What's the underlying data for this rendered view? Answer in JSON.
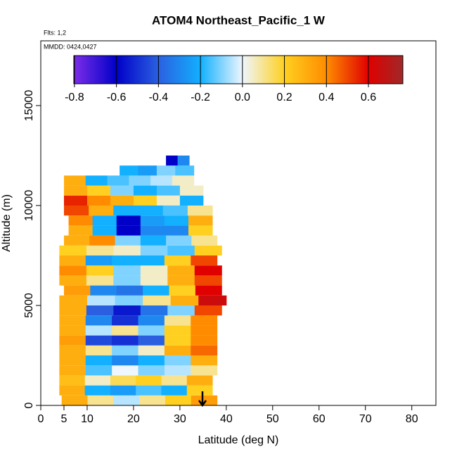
{
  "chart_data": {
    "type": "curtain",
    "title": "ATOM4 Northeast_Pacific_1 W",
    "notes": [
      "Flts: 1,2",
      "MMDD: 0424,0427"
    ],
    "xlabel": "Latitude (deg N)",
    "ylabel": "Altitude (m)",
    "xlim": [
      0,
      85.2
    ],
    "xticks": [
      0,
      5,
      10,
      20,
      30,
      40,
      50,
      60,
      70,
      80
    ],
    "ylim": [
      0,
      18240
    ],
    "yticks": [
      0,
      5000,
      10000,
      15000
    ],
    "clim": [
      -0.803,
      0.764
    ],
    "cticks": [
      -0.8,
      -0.6,
      -0.4,
      -0.2,
      {
        "value": 0,
        "label": "0.0"
      },
      0.2,
      0.4,
      0.6
    ],
    "colorscale": [
      [
        -0.8,
        "#7b2de8"
      ],
      [
        -0.6,
        "#0000c8"
      ],
      [
        -0.4,
        "#2a60e0"
      ],
      [
        -0.2,
        "#12b0ff"
      ],
      [
        0,
        "#eef6ff"
      ],
      [
        0.2,
        "#ffd020"
      ],
      [
        0.4,
        "#ff8c00"
      ],
      [
        0.6,
        "#e00000"
      ],
      [
        0.764,
        "#a02828"
      ]
    ],
    "bands": [
      {
        "bottom": 0,
        "top": 500,
        "lat_start": 4.5,
        "lat_end": 38,
        "values": [
          0.3,
          0.1,
          -0.05,
          0.1,
          0.2,
          0.35
        ]
      },
      {
        "bottom": 500,
        "top": 1000,
        "lat_start": 4,
        "lat_end": 37,
        "values": [
          0.3,
          -0.2,
          -0.25,
          -0.15,
          -0.2,
          0.2
        ]
      },
      {
        "bottom": 1000,
        "top": 1500,
        "lat_start": 4,
        "lat_end": 37,
        "values": [
          0.25,
          0.05,
          0.15,
          0.2,
          0.1,
          0.3
        ]
      },
      {
        "bottom": 1500,
        "top": 2000,
        "lat_start": 4,
        "lat_end": 38,
        "values": [
          0.3,
          -0.15,
          0,
          -0.1,
          -0.05,
          0.1
        ]
      },
      {
        "bottom": 2000,
        "top": 2500,
        "lat_start": 4,
        "lat_end": 38,
        "values": [
          0.3,
          -0.2,
          -0.3,
          -0.2,
          -0.1,
          0.3
        ]
      },
      {
        "bottom": 2500,
        "top": 3000,
        "lat_start": 4,
        "lat_end": 38,
        "values": [
          0.3,
          0.1,
          -0.1,
          0.05,
          0.3,
          0.45
        ]
      },
      {
        "bottom": 3000,
        "top": 3500,
        "lat_start": 4,
        "lat_end": 38,
        "values": [
          0.35,
          -0.45,
          -0.5,
          -0.4,
          0.2,
          0.4
        ]
      },
      {
        "bottom": 3500,
        "top": 4000,
        "lat_start": 4,
        "lat_end": 38,
        "values": [
          0.3,
          -0.05,
          0.1,
          -0.1,
          0.2,
          0.4
        ]
      },
      {
        "bottom": 4000,
        "top": 4500,
        "lat_start": 4,
        "lat_end": 38,
        "values": [
          0.3,
          -0.3,
          -0.5,
          -0.3,
          0.1,
          0.4
        ]
      },
      {
        "bottom": 4500,
        "top": 5000,
        "lat_start": 4,
        "lat_end": 39,
        "values": [
          0.3,
          -0.4,
          -0.55,
          -0.35,
          -0.1,
          0.5
        ]
      },
      {
        "bottom": 5000,
        "top": 5500,
        "lat_start": 4,
        "lat_end": 40,
        "values": [
          0.3,
          -0.05,
          -0.1,
          0.1,
          0.3,
          0.65
        ]
      },
      {
        "bottom": 5500,
        "top": 6000,
        "lat_start": 5,
        "lat_end": 39,
        "values": [
          0.35,
          -0.3,
          -0.35,
          -0.2,
          0.2,
          0.6
        ]
      },
      {
        "bottom": 6000,
        "top": 6500,
        "lat_start": 4,
        "lat_end": 39,
        "values": [
          0.3,
          0.1,
          -0.1,
          0.05,
          0.3,
          0.5
        ]
      },
      {
        "bottom": 6500,
        "top": 7000,
        "lat_start": 4,
        "lat_end": 39,
        "values": [
          0.4,
          0.2,
          -0.1,
          0.05,
          0.3,
          0.6
        ]
      },
      {
        "bottom": 7000,
        "top": 7500,
        "lat_start": 4,
        "lat_end": 38,
        "values": [
          0.3,
          -0.25,
          -0.2,
          -0.2,
          0.2,
          0.5
        ]
      },
      {
        "bottom": 7500,
        "top": 8000,
        "lat_start": 4,
        "lat_end": 39,
        "values": [
          0.2,
          0.1,
          0.05,
          -0.1,
          -0.15,
          0.2
        ]
      },
      {
        "bottom": 8000,
        "top": 8500,
        "lat_start": 5,
        "lat_end": 38,
        "values": [
          0.3,
          0.4,
          -0.1,
          -0.2,
          -0.1,
          0.1
        ]
      },
      {
        "bottom": 8500,
        "top": 9000,
        "lat_start": 6,
        "lat_end": 37,
        "values": [
          0.3,
          -0.2,
          -0.6,
          -0.3,
          -0.3,
          0.2
        ]
      },
      {
        "bottom": 9000,
        "top": 9500,
        "lat_start": 6,
        "lat_end": 37,
        "values": [
          0.4,
          -0.2,
          -0.6,
          -0.25,
          -0.2,
          0.3
        ]
      },
      {
        "bottom": 9500,
        "top": 10000,
        "lat_start": 5,
        "lat_end": 37,
        "values": [
          0.5,
          0.3,
          -0.2,
          -0.2,
          -0.15,
          0.1
        ]
      },
      {
        "bottom": 10000,
        "top": 10500,
        "lat_start": 5,
        "lat_end": 35,
        "values": [
          0.55,
          0.4,
          0.3,
          0.2,
          0.05,
          -0.2
        ]
      },
      {
        "bottom": 10500,
        "top": 11000,
        "lat_start": 5,
        "lat_end": 35,
        "values": [
          0.3,
          0.2,
          -0.1,
          -0.2,
          -0.15,
          0.05
        ]
      },
      {
        "bottom": 11000,
        "top": 11500,
        "lat_start": 5,
        "lat_end": 33,
        "values": [
          0.3,
          -0.2,
          -0.15,
          -0.1,
          -0.05,
          0.05
        ]
      },
      {
        "bottom": 11500,
        "top": 12000,
        "lat_start": 17,
        "lat_end": 33,
        "values": [
          -0.2,
          -0.25,
          -0.1,
          -0.15
        ]
      },
      {
        "bottom": 12000,
        "top": 12500,
        "lat_start": 27,
        "lat_end": 32,
        "values": [
          -0.6,
          -0.3
        ]
      }
    ]
  }
}
